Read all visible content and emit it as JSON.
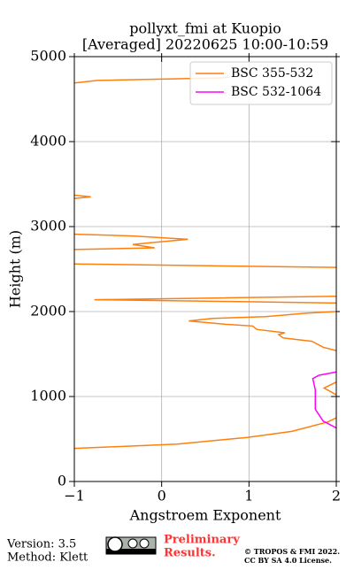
{
  "chart_data": {
    "type": "line",
    "title": "pollyxt_fmi at Kuopio",
    "subtitle": "[Averaged] 20220625 10:00-10:59",
    "x_label": "Angstroem Exponent",
    "y_label": "Height (m)",
    "xlim": [
      -1,
      2
    ],
    "xticks": [
      {
        "value": -1,
        "label": "−1"
      },
      0,
      1,
      2
    ],
    "ylim": [
      0,
      5000
    ],
    "yticks": [
      0,
      1000,
      2000,
      3000,
      4000,
      5000
    ],
    "grid": true,
    "legend": "upper right",
    "series": [
      {
        "name": "BSC 355-532",
        "color": "#ff7f0e",
        "values": [
          -1,
          0.18,
          0.99,
          1.49,
          1.9,
          2.0,
          null,
          2.0,
          1.86,
          2.0,
          null,
          2.0,
          1.85,
          1.72,
          1.39,
          1.34,
          1.41,
          1.09,
          1.04,
          0.73,
          0.31,
          0.58,
          1.19,
          1.65,
          2.0,
          null,
          2.0,
          0.68,
          -0.77,
          0.68,
          2.0,
          null,
          2.0,
          -1,
          null,
          -1,
          -0.08,
          -0.33,
          -0.13,
          0.3,
          -0.33,
          -1,
          null,
          -1,
          -0.81,
          -1,
          null,
          -1,
          -0.74,
          0.68,
          0.78
        ],
        "heights": [
          390,
          440,
          520,
          590,
          700,
          750,
          null,
          1170,
          1100,
          1020,
          null,
          1540,
          1580,
          1650,
          1690,
          1730,
          1750,
          1790,
          1830,
          1850,
          1890,
          1920,
          1940,
          1980,
          2000,
          null,
          2100,
          2120,
          2140,
          2160,
          2180,
          null,
          2520,
          2560,
          null,
          2730,
          2750,
          2790,
          2810,
          2850,
          2890,
          2910,
          null,
          3330,
          3350,
          3370,
          null,
          4690,
          4720,
          4750,
          4760
        ]
      },
      {
        "name": "BSC 532-1064",
        "color": "#ff00ff",
        "values": [
          2.0,
          1.85,
          1.76,
          1.76,
          1.73,
          1.8,
          2.0
        ],
        "heights": [
          630,
          710,
          850,
          1080,
          1210,
          1250,
          1290
        ]
      }
    ]
  },
  "footer": {
    "version": "Version: 3.5",
    "method": "Method: Klett",
    "notice": [
      "Preliminary",
      "Results."
    ],
    "copyright": [
      "© TROPOS & FMI 2022.",
      "CC BY SA 4.0 License."
    ]
  }
}
